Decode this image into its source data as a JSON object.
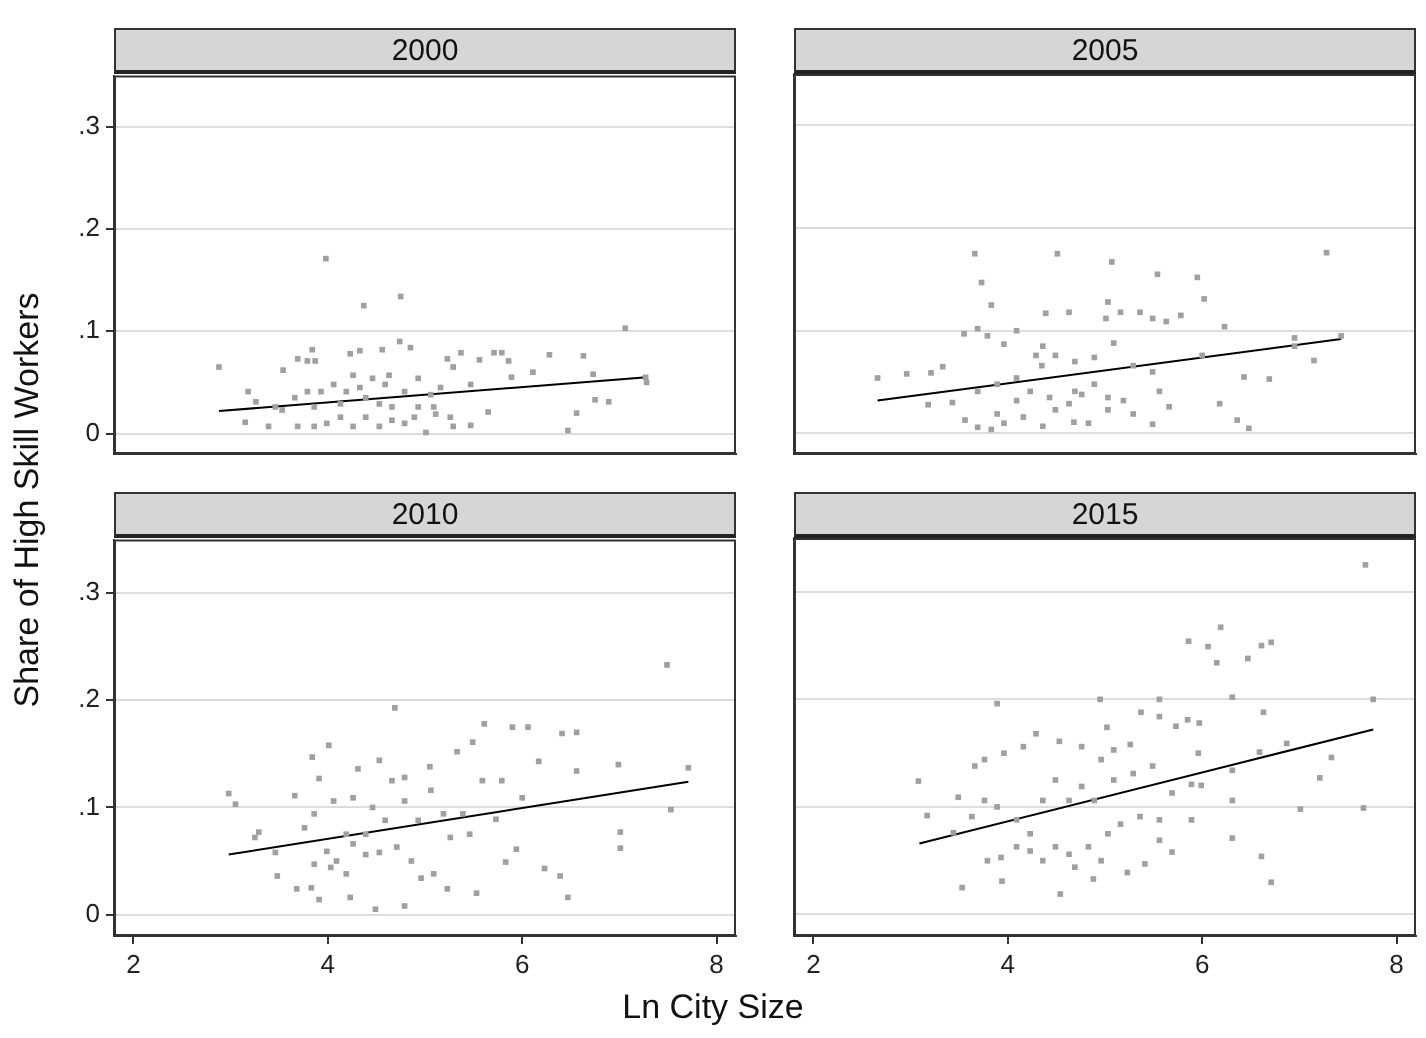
{
  "chart_data": [
    {
      "type": "scatter",
      "title": "2000",
      "ylabel": "Share of High Skill Workers",
      "xlim": [
        1.8,
        8.2
      ],
      "ylim": [
        -0.02,
        0.35
      ],
      "yticks": [
        0,
        {
          "value": 0.1,
          "label": ".1"
        },
        {
          "value": 0.2,
          "label": ".2"
        },
        {
          "value": 0.3,
          "label": ".3"
        }
      ],
      "grid": "y",
      "marker": "square",
      "tick_labels": "y",
      "series": [
        {
          "color": "#a0a0a0",
          "x": [
            2.88,
            3.98,
            4.37,
            4.75,
            7.06,
            7.28,
            7.27,
            6.47,
            6.56,
            6.75,
            6.89,
            6.73,
            6.63,
            6.28,
            6.11,
            5.89,
            5.71,
            5.79,
            5.86,
            5.56,
            5.37,
            5.23,
            5.29,
            5.47,
            5.65,
            5.47,
            5.01,
            5.29,
            5.11,
            4.93,
            4.74,
            4.85,
            4.56,
            4.33,
            4.23,
            3.84,
            3.69,
            3.79,
            3.87,
            3.54,
            3.18,
            3.26,
            3.15,
            3.39,
            3.53,
            3.69,
            3.86,
            3.99,
            4.13,
            4.26,
            4.39,
            4.53,
            4.66,
            4.79,
            4.89,
            5.09,
            5.16,
            5.06,
            4.79,
            4.59,
            4.46,
            4.33,
            4.19,
            4.06,
            3.93,
            3.79,
            3.66,
            3.46,
            4.39,
            4.13,
            3.86,
            4.53,
            4.66,
            4.26,
            4.63,
            4.93,
            5.26
          ],
          "values": [
            0.065,
            0.171,
            0.125,
            0.134,
            0.103,
            0.05,
            0.055,
            0.003,
            0.02,
            0.033,
            0.031,
            0.058,
            0.076,
            0.077,
            0.06,
            0.055,
            0.079,
            0.079,
            0.071,
            0.072,
            0.079,
            0.073,
            0.065,
            0.048,
            0.021,
            0.008,
            0.001,
            0.007,
            0.019,
            0.054,
            0.09,
            0.084,
            0.082,
            0.081,
            0.078,
            0.082,
            0.073,
            0.071,
            0.071,
            0.062,
            0.041,
            0.031,
            0.011,
            0.007,
            0.023,
            0.007,
            0.007,
            0.01,
            0.016,
            0.007,
            0.016,
            0.007,
            0.013,
            0.01,
            0.016,
            0.026,
            0.045,
            0.038,
            0.041,
            0.048,
            0.054,
            0.045,
            0.041,
            0.048,
            0.041,
            0.041,
            0.035,
            0.026,
            0.035,
            0.029,
            0.026,
            0.029,
            0.026,
            0.057,
            0.057,
            0.026,
            0.016
          ]
        },
        {
          "type": "line",
          "marker": "none",
          "color": "#000000",
          "x": [
            2.88,
            7.28
          ],
          "values": [
            0.022,
            0.055
          ]
        }
      ]
    },
    {
      "type": "scatter",
      "title": "2005",
      "xlim": [
        1.8,
        8.2
      ],
      "ylim": [
        -0.02,
        0.35
      ],
      "yticks": [
        {
          "value": 0,
          "label": null
        },
        {
          "value": 0.1,
          "label": null
        },
        {
          "value": 0.2,
          "label": null
        },
        {
          "value": 0.3,
          "label": null
        }
      ],
      "grid": "y",
      "marker": "square",
      "tick_labels": false,
      "series": [
        {
          "color": "#a0a0a0",
          "x": [
            2.66,
            2.96,
            3.21,
            3.33,
            3.18,
            3.43,
            3.55,
            3.66,
            3.73,
            3.83,
            3.69,
            3.79,
            3.96,
            4.09,
            4.51,
            5.07,
            5.54,
            5.95,
            6.02,
            7.28,
            7.43,
            6.95,
            6.95,
            7.15,
            6.43,
            6.69,
            6.18,
            6.36,
            6.48,
            6.23,
            6.0,
            5.78,
            5.63,
            5.49,
            5.36,
            5.16,
            5.03,
            5.01,
            4.63,
            4.39,
            4.36,
            4.29,
            4.35,
            4.49,
            4.69,
            4.89,
            5.09,
            5.29,
            5.49,
            5.56,
            5.66,
            5.49,
            5.29,
            5.03,
            4.83,
            4.68,
            4.49,
            4.36,
            4.16,
            3.96,
            3.83,
            3.69,
            3.56,
            3.89,
            4.09,
            4.23,
            4.43,
            4.63,
            4.76,
            4.89,
            5.03,
            5.19,
            4.69,
            4.09,
            3.89,
            3.69
          ],
          "values": [
            0.054,
            0.058,
            0.059,
            0.065,
            0.028,
            0.03,
            0.097,
            0.175,
            0.147,
            0.125,
            0.102,
            0.095,
            0.087,
            0.1,
            0.175,
            0.167,
            0.155,
            0.152,
            0.131,
            0.176,
            0.095,
            0.093,
            0.085,
            0.071,
            0.055,
            0.053,
            0.029,
            0.013,
            0.005,
            0.104,
            0.076,
            0.115,
            0.109,
            0.112,
            0.118,
            0.118,
            0.128,
            0.112,
            0.118,
            0.117,
            0.085,
            0.076,
            0.066,
            0.076,
            0.07,
            0.074,
            0.088,
            0.066,
            0.06,
            0.041,
            0.026,
            0.009,
            0.019,
            0.023,
            0.01,
            0.011,
            0.023,
            0.007,
            0.016,
            0.01,
            0.004,
            0.006,
            0.013,
            0.019,
            0.032,
            0.041,
            0.035,
            0.029,
            0.038,
            0.048,
            0.035,
            0.032,
            0.041,
            0.054,
            0.048,
            0.041
          ]
        },
        {
          "type": "line",
          "marker": "none",
          "color": "#000000",
          "x": [
            2.66,
            7.43
          ],
          "values": [
            0.032,
            0.092
          ]
        }
      ]
    },
    {
      "type": "scatter",
      "title": "2010",
      "xlabel": "Ln City Size",
      "xlim": [
        1.8,
        8.2
      ],
      "xticks": [
        2,
        4,
        6,
        8
      ],
      "ylim": [
        -0.02,
        0.35
      ],
      "yticks": [
        0,
        {
          "value": 0.1,
          "label": ".1"
        },
        {
          "value": 0.2,
          "label": ".2"
        },
        {
          "value": 0.3,
          "label": ".3"
        }
      ],
      "grid": "y",
      "marker": "square",
      "series": [
        {
          "color": "#a0a0a0",
          "x": [
            2.98,
            3.05,
            3.25,
            3.29,
            3.46,
            3.48,
            3.66,
            3.68,
            3.84,
            3.91,
            4.01,
            3.83,
            3.91,
            4.03,
            4.23,
            4.49,
            4.69,
            4.79,
            4.53,
            4.31,
            4.79,
            5.05,
            5.33,
            5.61,
            5.49,
            5.9,
            6.06,
            6.41,
            6.56,
            6.17,
            6.56,
            6.99,
            7.49,
            7.71,
            7.53,
            7.01,
            7.01,
            6.47,
            6.39,
            6.23,
            5.94,
            5.83,
            5.73,
            6.0,
            5.53,
            5.23,
            5.09,
            4.96,
            4.86,
            4.71,
            4.53,
            4.39,
            4.26,
            4.09,
            3.99,
            3.86,
            4.19,
            3.76,
            3.86,
            4.06,
            4.26,
            4.46,
            4.59,
            4.79,
            4.93,
            5.06,
            5.19,
            5.39,
            5.59,
            5.79,
            5.46,
            5.26,
            4.66,
            4.39,
            4.19
          ],
          "values": [
            0.113,
            0.103,
            0.072,
            0.077,
            0.058,
            0.036,
            0.111,
            0.024,
            0.147,
            0.127,
            0.158,
            0.025,
            0.014,
            0.044,
            0.016,
            0.005,
            0.193,
            0.008,
            0.144,
            0.136,
            0.128,
            0.138,
            0.152,
            0.178,
            0.161,
            0.175,
            0.175,
            0.169,
            0.17,
            0.143,
            0.134,
            0.14,
            0.233,
            0.137,
            0.098,
            0.077,
            0.062,
            0.016,
            0.036,
            0.043,
            0.061,
            0.049,
            0.089,
            0.109,
            0.02,
            0.024,
            0.038,
            0.034,
            0.05,
            0.063,
            0.058,
            0.056,
            0.066,
            0.05,
            0.059,
            0.047,
            0.038,
            0.081,
            0.094,
            0.106,
            0.109,
            0.1,
            0.088,
            0.106,
            0.088,
            0.116,
            0.094,
            0.094,
            0.125,
            0.125,
            0.075,
            0.072,
            0.125,
            0.075,
            0.075
          ]
        },
        {
          "type": "line",
          "marker": "none",
          "color": "#000000",
          "x": [
            2.98,
            7.71
          ],
          "values": [
            0.056,
            0.124
          ]
        }
      ]
    },
    {
      "type": "scatter",
      "title": "2015",
      "xlim": [
        1.8,
        8.2
      ],
      "xticks": [
        2,
        4,
        6,
        8
      ],
      "ylim": [
        -0.02,
        0.35
      ],
      "yticks": [
        {
          "value": 0,
          "label": null
        },
        {
          "value": 0.1,
          "label": null
        },
        {
          "value": 0.2,
          "label": null
        },
        {
          "value": 0.3,
          "label": null
        }
      ],
      "grid": "y",
      "marker": "square",
      "tick_labels": "x",
      "series": [
        {
          "color": "#a0a0a0",
          "x": [
            7.68,
            6.19,
            5.86,
            6.06,
            6.15,
            6.47,
            6.61,
            6.71,
            6.31,
            6.63,
            7.76,
            5.56,
            4.95,
            3.89,
            3.08,
            3.17,
            3.53,
            3.94,
            4.54,
            4.88,
            5.23,
            5.41,
            5.69,
            6.31,
            6.61,
            6.71,
            7.01,
            7.21,
            7.33,
            7.66,
            6.87,
            6.59,
            6.31,
            6.31,
            5.89,
            5.99,
            5.96,
            5.85,
            5.97,
            5.73,
            5.37,
            5.56,
            5.26,
            5.02,
            5.09,
            4.96,
            4.76,
            4.53,
            4.29,
            4.16,
            3.96,
            3.76,
            3.66,
            3.49,
            3.44,
            3.63,
            3.76,
            3.89,
            4.09,
            4.23,
            4.36,
            4.49,
            4.63,
            4.76,
            4.89,
            5.09,
            5.29,
            5.49,
            5.69,
            5.89,
            5.56,
            5.36,
            5.16,
            5.03,
            4.83,
            4.63,
            4.49,
            4.36,
            4.09,
            3.93,
            3.79,
            4.23,
            4.69,
            4.96,
            5.56
          ],
          "values": [
            0.325,
            0.267,
            0.254,
            0.249,
            0.234,
            0.238,
            0.25,
            0.253,
            0.202,
            0.188,
            0.2,
            0.2,
            0.2,
            0.196,
            0.124,
            0.092,
            0.025,
            0.031,
            0.019,
            0.033,
            0.039,
            0.047,
            0.058,
            0.071,
            0.054,
            0.03,
            0.098,
            0.127,
            0.146,
            0.099,
            0.159,
            0.151,
            0.134,
            0.106,
            0.121,
            0.12,
            0.15,
            0.181,
            0.178,
            0.175,
            0.188,
            0.184,
            0.158,
            0.174,
            0.153,
            0.144,
            0.156,
            0.161,
            0.168,
            0.156,
            0.15,
            0.144,
            0.138,
            0.109,
            0.076,
            0.091,
            0.106,
            0.1,
            0.088,
            0.075,
            0.106,
            0.125,
            0.106,
            0.119,
            0.106,
            0.125,
            0.131,
            0.138,
            0.113,
            0.088,
            0.088,
            0.091,
            0.084,
            0.075,
            0.063,
            0.056,
            0.063,
            0.05,
            0.063,
            0.053,
            0.05,
            0.059,
            0.044,
            0.05,
            0.069
          ]
        },
        {
          "type": "line",
          "marker": "none",
          "color": "#000000",
          "x": [
            3.09,
            7.76
          ],
          "values": [
            0.066,
            0.172
          ]
        }
      ]
    }
  ]
}
